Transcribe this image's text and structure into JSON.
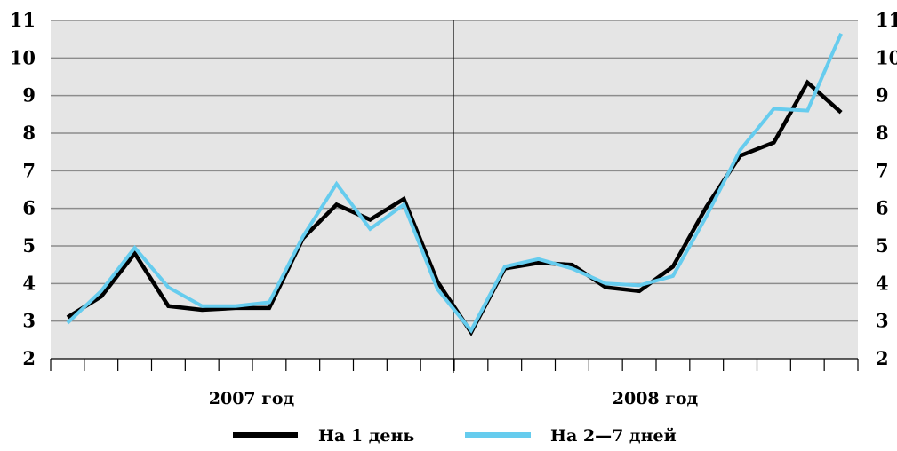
{
  "chart_data": {
    "type": "line",
    "ylim": [
      2,
      11
    ],
    "y_ticks": [
      "2",
      "3",
      "4",
      "5",
      "6",
      "7",
      "8",
      "9",
      "10",
      "11"
    ],
    "grid": true,
    "year_labels": [
      "2007 год",
      "2008 год"
    ],
    "series": [
      {
        "name": "На 1 день",
        "color": "#000000",
        "values": [
          3.1,
          3.65,
          4.8,
          3.4,
          3.3,
          3.35,
          3.35,
          5.2,
          6.1,
          5.7,
          6.25,
          4.05,
          2.7,
          4.4,
          4.55,
          4.5,
          3.9,
          3.8,
          4.45,
          6.05,
          7.4,
          7.75,
          9.35,
          8.55
        ]
      },
      {
        "name": "На 2—7 дней",
        "color": "#66ccee",
        "values": [
          2.95,
          3.8,
          4.95,
          3.9,
          3.4,
          3.4,
          3.5,
          5.25,
          6.65,
          5.45,
          6.1,
          3.85,
          2.75,
          4.45,
          4.65,
          4.4,
          4.0,
          3.95,
          4.2,
          5.8,
          7.55,
          8.65,
          8.6,
          10.65
        ]
      }
    ]
  }
}
